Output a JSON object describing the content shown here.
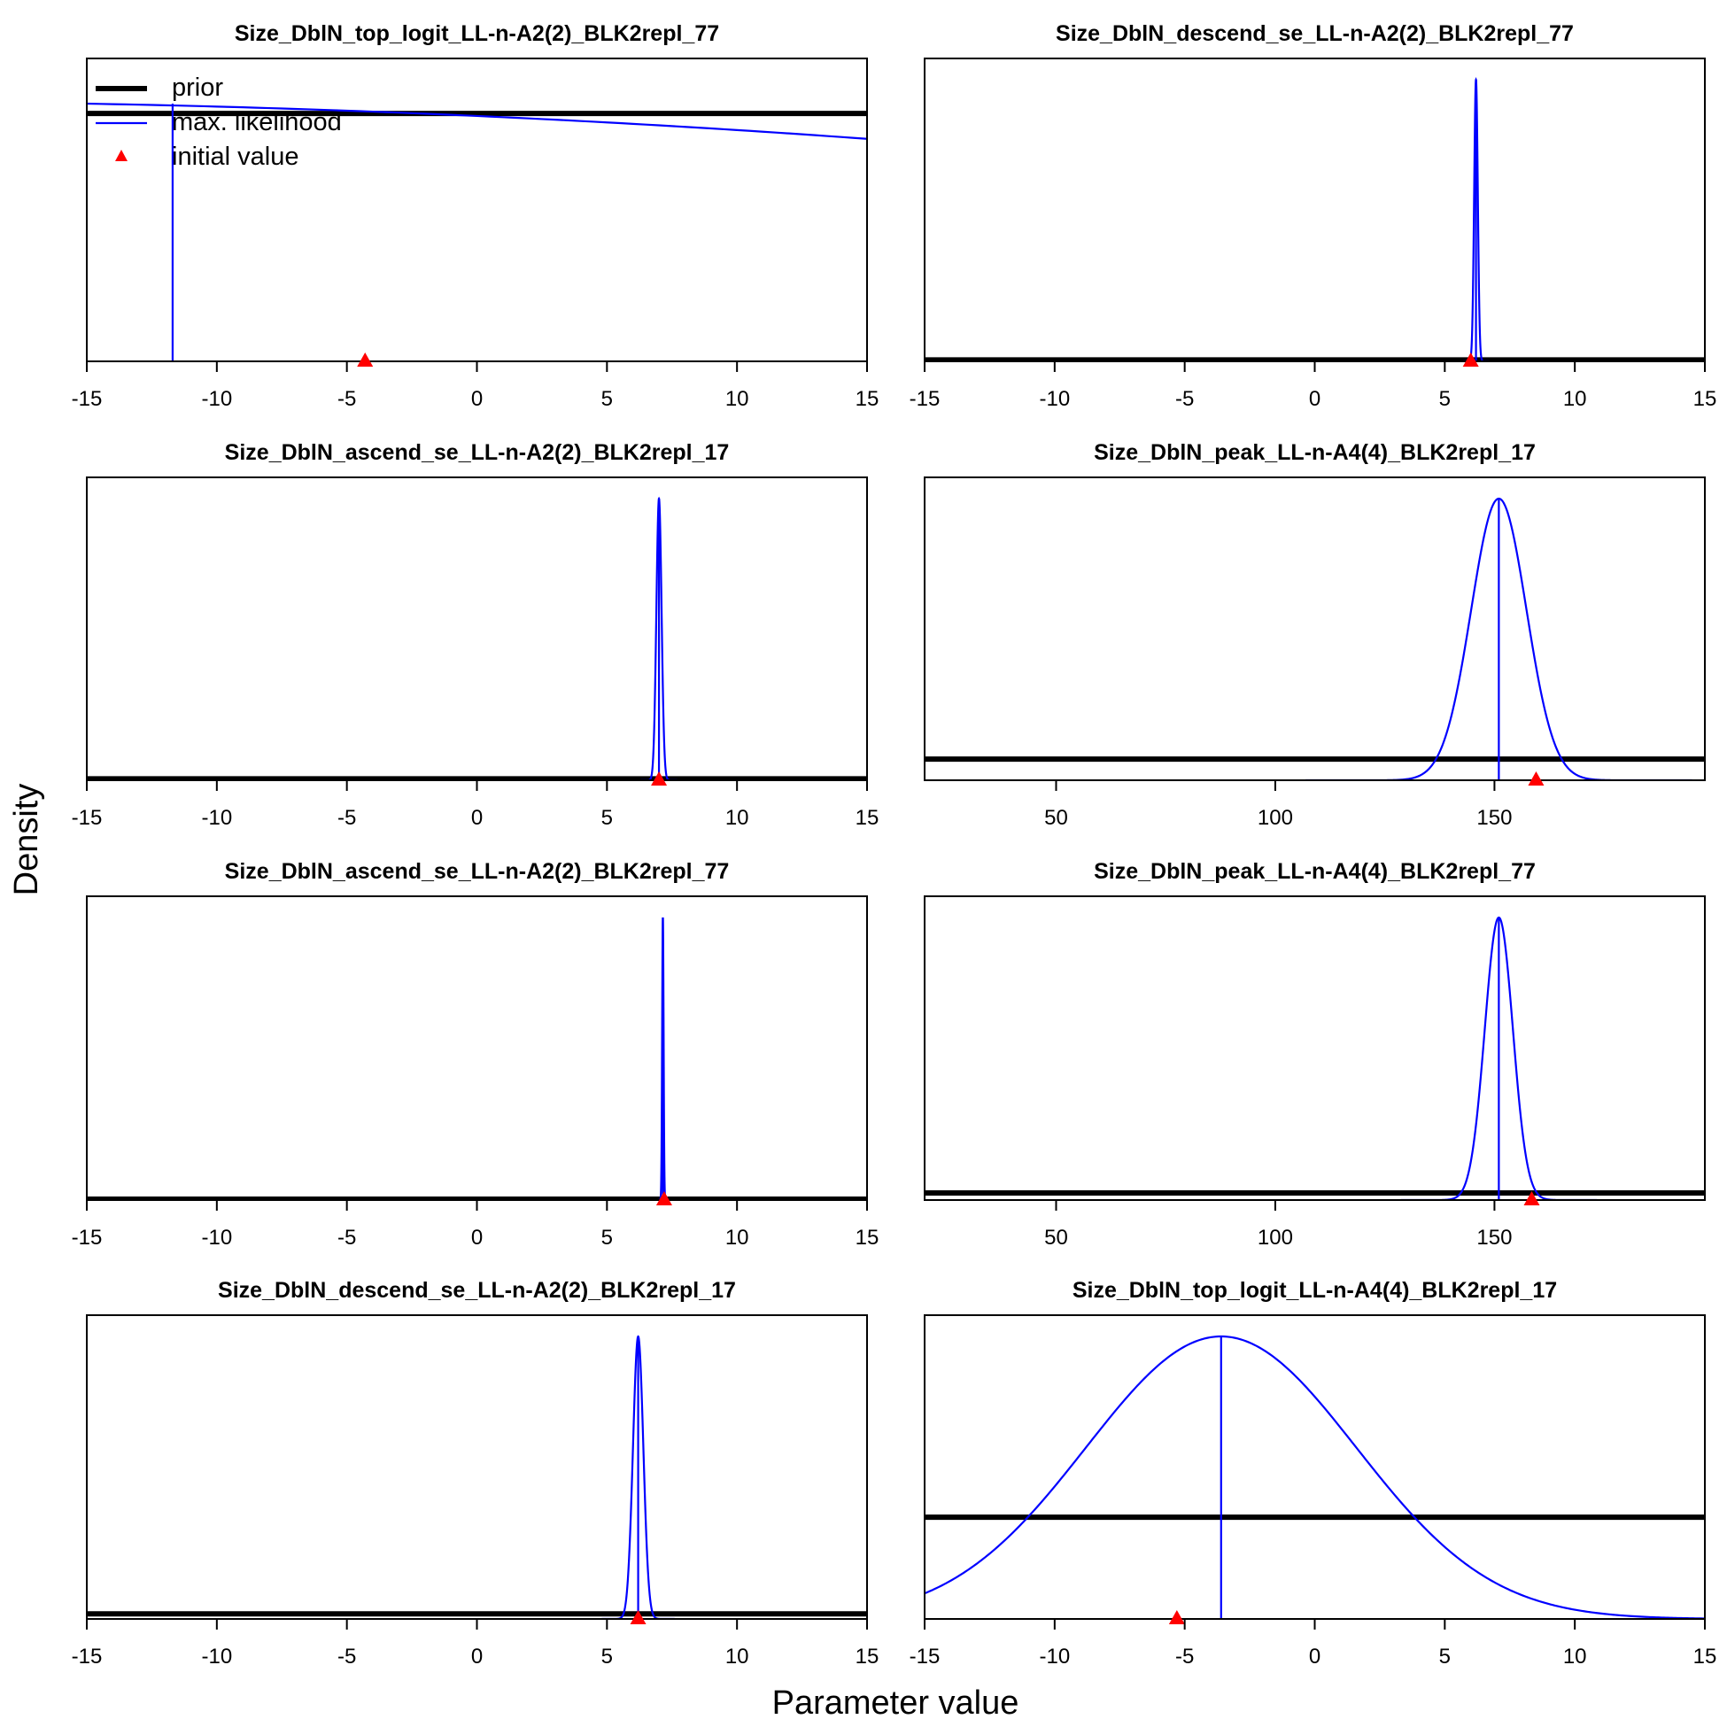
{
  "axes": {
    "xlabel": "Parameter value",
    "ylabel": "Density"
  },
  "legend": {
    "placement": "top-left of first panel",
    "items": [
      {
        "label": "prior",
        "color": "#000000",
        "kind": "thick-line"
      },
      {
        "label": "max. likelihood",
        "color": "#0000ff",
        "kind": "line"
      },
      {
        "label": "initial value",
        "color": "#ff0000",
        "kind": "triangle"
      }
    ]
  },
  "colors": {
    "prior": "#000000",
    "likelihood": "#0000ff",
    "initial": "#ff0000",
    "frame": "#000000"
  },
  "chart_data": [
    {
      "type": "line",
      "title": "Size_DblN_top_logit_LL-n-A2(2)_BLK2repl_77",
      "xlim": [
        -15,
        15
      ],
      "xticks": [
        -15,
        -10,
        -5,
        0,
        5,
        10,
        15
      ],
      "likelihood": {
        "kind": "flat-decreasing",
        "start_x": -15,
        "start_density": 0.915,
        "end_density": 0.79
      },
      "mle": -11.7,
      "mle_height": 0.915,
      "prior_level": 0.88,
      "initial_value": -4.3,
      "legend": true
    },
    {
      "type": "line",
      "title": "Size_DblN_descend_se_LL-n-A2(2)_BLK2repl_77",
      "xlim": [
        -15,
        15
      ],
      "xticks": [
        -15,
        -10,
        -5,
        0,
        5,
        10,
        15
      ],
      "likelihood": {
        "kind": "normal",
        "mean": 6.2,
        "sd": 0.07
      },
      "mle": 6.2,
      "prior_level": 0.005,
      "initial_value": 6.0
    },
    {
      "type": "line",
      "title": "Size_DblN_ascend_se_LL-n-A2(2)_BLK2repl_17",
      "xlim": [
        -15,
        15
      ],
      "xticks": [
        -15,
        -10,
        -5,
        0,
        5,
        10,
        15
      ],
      "likelihood": {
        "kind": "normal",
        "mean": 7.0,
        "sd": 0.1
      },
      "mle": 7.0,
      "prior_level": 0.005,
      "initial_value": 7.0
    },
    {
      "type": "line",
      "title": "Size_DblN_peak_LL-n-A4(4)_BLK2repl_17",
      "xlim": [
        20,
        198
      ],
      "xticks": [
        50,
        100,
        150
      ],
      "likelihood": {
        "kind": "normal",
        "mean": 151,
        "sd": 6.3
      },
      "mle": 151,
      "prior_level": 0.075,
      "initial_value": 159.5
    },
    {
      "type": "line",
      "title": "Size_DblN_ascend_se_LL-n-A2(2)_BLK2repl_77",
      "xlim": [
        -15,
        15
      ],
      "xticks": [
        -15,
        -10,
        -5,
        0,
        5,
        10,
        15
      ],
      "likelihood": {
        "kind": "normal",
        "mean": 7.15,
        "sd": 0.028
      },
      "mle": 7.15,
      "prior_level": 0.003,
      "initial_value": 7.2
    },
    {
      "type": "line",
      "title": "Size_DblN_peak_LL-n-A4(4)_BLK2repl_77",
      "xlim": [
        20,
        198
      ],
      "xticks": [
        50,
        100,
        150
      ],
      "likelihood": {
        "kind": "normal",
        "mean": 151,
        "sd": 3.2
      },
      "mle": 151,
      "prior_level": 0.025,
      "initial_value": 158.5
    },
    {
      "type": "line",
      "title": "Size_DblN_descend_se_LL-n-A2(2)_BLK2repl_17",
      "xlim": [
        -15,
        15
      ],
      "xticks": [
        -15,
        -10,
        -5,
        0,
        5,
        10,
        15
      ],
      "likelihood": {
        "kind": "normal",
        "mean": 6.2,
        "sd": 0.2
      },
      "mle": 6.2,
      "prior_level": 0.018,
      "initial_value": 6.2
    },
    {
      "type": "line",
      "title": "Size_DblN_top_logit_LL-n-A4(4)_BLK2repl_17",
      "xlim": [
        -15,
        15
      ],
      "xticks": [
        -15,
        -10,
        -5,
        0,
        5,
        10,
        15
      ],
      "likelihood": {
        "kind": "normal",
        "mean": -3.6,
        "sd": 5.2
      },
      "mle": -3.6,
      "prior_level": 0.36,
      "initial_value": -5.3
    }
  ]
}
